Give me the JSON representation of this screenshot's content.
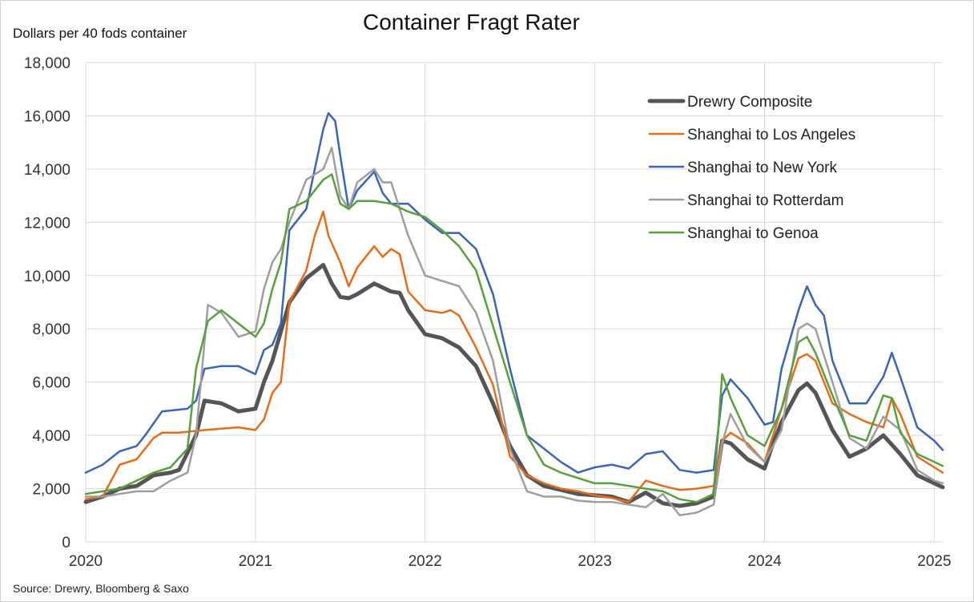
{
  "chart_data": {
    "type": "line",
    "title": "Container Fragt Rater",
    "ylabel": "Dollars per 40 fods container",
    "source": "Source: Drewry, Bloomberg & Saxo",
    "xlabel": "",
    "x_ticks": [
      "2020",
      "2021",
      "2022",
      "2023",
      "2024",
      "2025"
    ],
    "y_ticks": [
      "0",
      "2,000",
      "4,000",
      "6,000",
      "8,000",
      "10,000",
      "12,000",
      "14,000",
      "16,000",
      "18,000"
    ],
    "xlim": [
      2020,
      2025.05
    ],
    "ylim": [
      0,
      18000
    ],
    "grid": true,
    "legend_position": "top-right",
    "series": [
      {
        "name": "Drewry Composite",
        "color": "#555555",
        "width": 5,
        "x": [
          2020.0,
          2020.1,
          2020.2,
          2020.3,
          2020.4,
          2020.5,
          2020.55,
          2020.65,
          2020.7,
          2020.8,
          2020.9,
          2021.0,
          2021.05,
          2021.1,
          2021.2,
          2021.3,
          2021.4,
          2021.45,
          2021.5,
          2021.55,
          2021.6,
          2021.7,
          2021.8,
          2021.85,
          2021.9,
          2022.0,
          2022.1,
          2022.2,
          2022.3,
          2022.4,
          2022.5,
          2022.6,
          2022.7,
          2022.8,
          2022.9,
          2023.0,
          2023.1,
          2023.2,
          2023.3,
          2023.4,
          2023.5,
          2023.6,
          2023.7,
          2023.75,
          2023.8,
          2023.9,
          2024.0,
          2024.05,
          2024.1,
          2024.2,
          2024.25,
          2024.3,
          2024.4,
          2024.5,
          2024.6,
          2024.7,
          2024.8,
          2024.9,
          2025.0,
          2025.05
        ],
        "y": [
          1500,
          1700,
          2000,
          2100,
          2500,
          2600,
          2700,
          4000,
          5300,
          5200,
          4900,
          5000,
          6000,
          6800,
          9000,
          9900,
          10400,
          9700,
          9200,
          9150,
          9300,
          9700,
          9400,
          9350,
          8700,
          7800,
          7650,
          7300,
          6600,
          5200,
          3600,
          2500,
          2100,
          1950,
          1800,
          1750,
          1700,
          1500,
          1850,
          1450,
          1350,
          1450,
          1700,
          3800,
          3700,
          3100,
          2750,
          3700,
          4500,
          5700,
          5950,
          5600,
          4200,
          3200,
          3500,
          4000,
          3300,
          2500,
          2200,
          2050
        ]
      },
      {
        "name": "Shanghai to Los Angeles",
        "color": "#E46C1A",
        "width": 2.5,
        "x": [
          2020.0,
          2020.1,
          2020.2,
          2020.3,
          2020.4,
          2020.45,
          2020.55,
          2020.7,
          2020.8,
          2020.9,
          2021.0,
          2021.05,
          2021.1,
          2021.15,
          2021.2,
          2021.3,
          2021.35,
          2021.4,
          2021.43,
          2021.5,
          2021.55,
          2021.6,
          2021.7,
          2021.75,
          2021.8,
          2021.85,
          2021.9,
          2022.0,
          2022.1,
          2022.15,
          2022.2,
          2022.3,
          2022.4,
          2022.5,
          2022.6,
          2022.7,
          2022.8,
          2022.9,
          2023.0,
          2023.1,
          2023.2,
          2023.3,
          2023.4,
          2023.5,
          2023.6,
          2023.7,
          2023.75,
          2023.8,
          2023.9,
          2024.0,
          2024.1,
          2024.2,
          2024.25,
          2024.3,
          2024.4,
          2024.5,
          2024.6,
          2024.7,
          2024.75,
          2024.8,
          2024.9,
          2025.0,
          2025.05
        ],
        "y": [
          1600,
          1700,
          2900,
          3100,
          3900,
          4100,
          4100,
          4200,
          4250,
          4300,
          4200,
          4600,
          5600,
          6000,
          9000,
          10200,
          11500,
          12400,
          11500,
          10500,
          9600,
          10300,
          11100,
          10700,
          11000,
          10800,
          9400,
          8700,
          8600,
          8700,
          8500,
          7300,
          5900,
          3200,
          2500,
          2200,
          2000,
          1900,
          1750,
          1650,
          1500,
          2300,
          2100,
          1950,
          2000,
          2100,
          3800,
          4100,
          3700,
          3000,
          5000,
          6900,
          7050,
          6800,
          5200,
          4800,
          4500,
          4300,
          5400,
          4800,
          3200,
          2800,
          2600
        ]
      },
      {
        "name": "Shanghai to New York",
        "color": "#3C64B4",
        "width": 2.5,
        "x": [
          2020.0,
          2020.1,
          2020.2,
          2020.3,
          2020.35,
          2020.45,
          2020.6,
          2020.65,
          2020.7,
          2020.8,
          2020.9,
          2021.0,
          2021.05,
          2021.1,
          2021.15,
          2021.2,
          2021.3,
          2021.4,
          2021.43,
          2021.47,
          2021.5,
          2021.55,
          2021.6,
          2021.7,
          2021.75,
          2021.8,
          2021.9,
          2022.0,
          2022.1,
          2022.2,
          2022.3,
          2022.4,
          2022.5,
          2022.6,
          2022.7,
          2022.8,
          2022.9,
          2023.0,
          2023.1,
          2023.2,
          2023.3,
          2023.4,
          2023.5,
          2023.6,
          2023.7,
          2023.75,
          2023.8,
          2023.9,
          2024.0,
          2024.05,
          2024.1,
          2024.2,
          2024.25,
          2024.3,
          2024.35,
          2024.4,
          2024.5,
          2024.6,
          2024.7,
          2024.75,
          2024.8,
          2024.9,
          2025.0,
          2025.05
        ],
        "y": [
          2600,
          2900,
          3400,
          3600,
          4000,
          4900,
          5000,
          5300,
          6500,
          6600,
          6600,
          6300,
          7200,
          7400,
          8200,
          11700,
          12500,
          15500,
          16100,
          15800,
          14500,
          12500,
          13200,
          13900,
          13100,
          12700,
          12700,
          12100,
          11600,
          11600,
          11000,
          9300,
          6500,
          4000,
          3500,
          3000,
          2600,
          2800,
          2900,
          2750,
          3300,
          3400,
          2700,
          2600,
          2700,
          5500,
          6100,
          5400,
          4400,
          4500,
          6500,
          8700,
          9600,
          8900,
          8500,
          6800,
          5200,
          5200,
          6200,
          7100,
          6200,
          4300,
          3800,
          3450
        ]
      },
      {
        "name": "Shanghai to Rotterdam",
        "color": "#9E9E9E",
        "width": 2.5,
        "x": [
          2020.0,
          2020.1,
          2020.2,
          2020.3,
          2020.4,
          2020.5,
          2020.6,
          2020.65,
          2020.72,
          2020.8,
          2020.9,
          2021.0,
          2021.05,
          2021.1,
          2021.15,
          2021.2,
          2021.3,
          2021.4,
          2021.45,
          2021.5,
          2021.55,
          2021.6,
          2021.7,
          2021.75,
          2021.8,
          2021.85,
          2021.9,
          2022.0,
          2022.1,
          2022.15,
          2022.2,
          2022.3,
          2022.4,
          2022.5,
          2022.6,
          2022.7,
          2022.8,
          2022.9,
          2023.0,
          2023.1,
          2023.2,
          2023.3,
          2023.4,
          2023.5,
          2023.6,
          2023.7,
          2023.75,
          2023.8,
          2023.9,
          2024.0,
          2024.1,
          2024.2,
          2024.25,
          2024.3,
          2024.4,
          2024.5,
          2024.6,
          2024.7,
          2024.8,
          2024.9,
          2025.0,
          2025.05
        ],
        "y": [
          1700,
          1700,
          1800,
          1900,
          1900,
          2300,
          2600,
          4000,
          8900,
          8600,
          7700,
          7900,
          9500,
          10500,
          11000,
          12000,
          13600,
          14000,
          14800,
          13000,
          12500,
          13500,
          14000,
          13500,
          13500,
          12500,
          11500,
          10000,
          9800,
          9700,
          9600,
          8600,
          6800,
          3500,
          1900,
          1700,
          1700,
          1550,
          1500,
          1500,
          1400,
          1300,
          1800,
          1000,
          1100,
          1400,
          3700,
          4800,
          3600,
          3000,
          4200,
          8000,
          8200,
          8000,
          6000,
          3900,
          3500,
          4700,
          4200,
          2700,
          2300,
          2200
        ]
      },
      {
        "name": "Shanghai to Genoa",
        "color": "#5B9E3C",
        "width": 2.5,
        "x": [
          2020.0,
          2020.1,
          2020.2,
          2020.3,
          2020.4,
          2020.5,
          2020.6,
          2020.65,
          2020.72,
          2020.8,
          2020.9,
          2021.0,
          2021.05,
          2021.1,
          2021.15,
          2021.2,
          2021.3,
          2021.4,
          2021.45,
          2021.5,
          2021.55,
          2021.6,
          2021.7,
          2021.8,
          2021.9,
          2022.0,
          2022.1,
          2022.2,
          2022.3,
          2022.4,
          2022.5,
          2022.6,
          2022.7,
          2022.8,
          2022.9,
          2023.0,
          2023.1,
          2023.2,
          2023.3,
          2023.4,
          2023.5,
          2023.6,
          2023.7,
          2023.75,
          2023.8,
          2023.9,
          2024.0,
          2024.1,
          2024.2,
          2024.25,
          2024.3,
          2024.4,
          2024.5,
          2024.6,
          2024.7,
          2024.75,
          2024.8,
          2024.9,
          2025.0,
          2025.05
        ],
        "y": [
          1800,
          1900,
          2000,
          2300,
          2600,
          2800,
          3500,
          6500,
          8300,
          8700,
          8200,
          7700,
          8200,
          9500,
          10500,
          12500,
          12800,
          13600,
          13800,
          12700,
          12500,
          12800,
          12800,
          12700,
          12400,
          12200,
          11700,
          11100,
          10200,
          8100,
          6000,
          4000,
          2900,
          2600,
          2400,
          2200,
          2200,
          2100,
          2000,
          1900,
          1600,
          1500,
          1800,
          6300,
          5400,
          4000,
          3600,
          5000,
          7500,
          7700,
          7100,
          5500,
          4000,
          3800,
          5500,
          5400,
          4100,
          3300,
          3000,
          2850
        ]
      }
    ]
  }
}
